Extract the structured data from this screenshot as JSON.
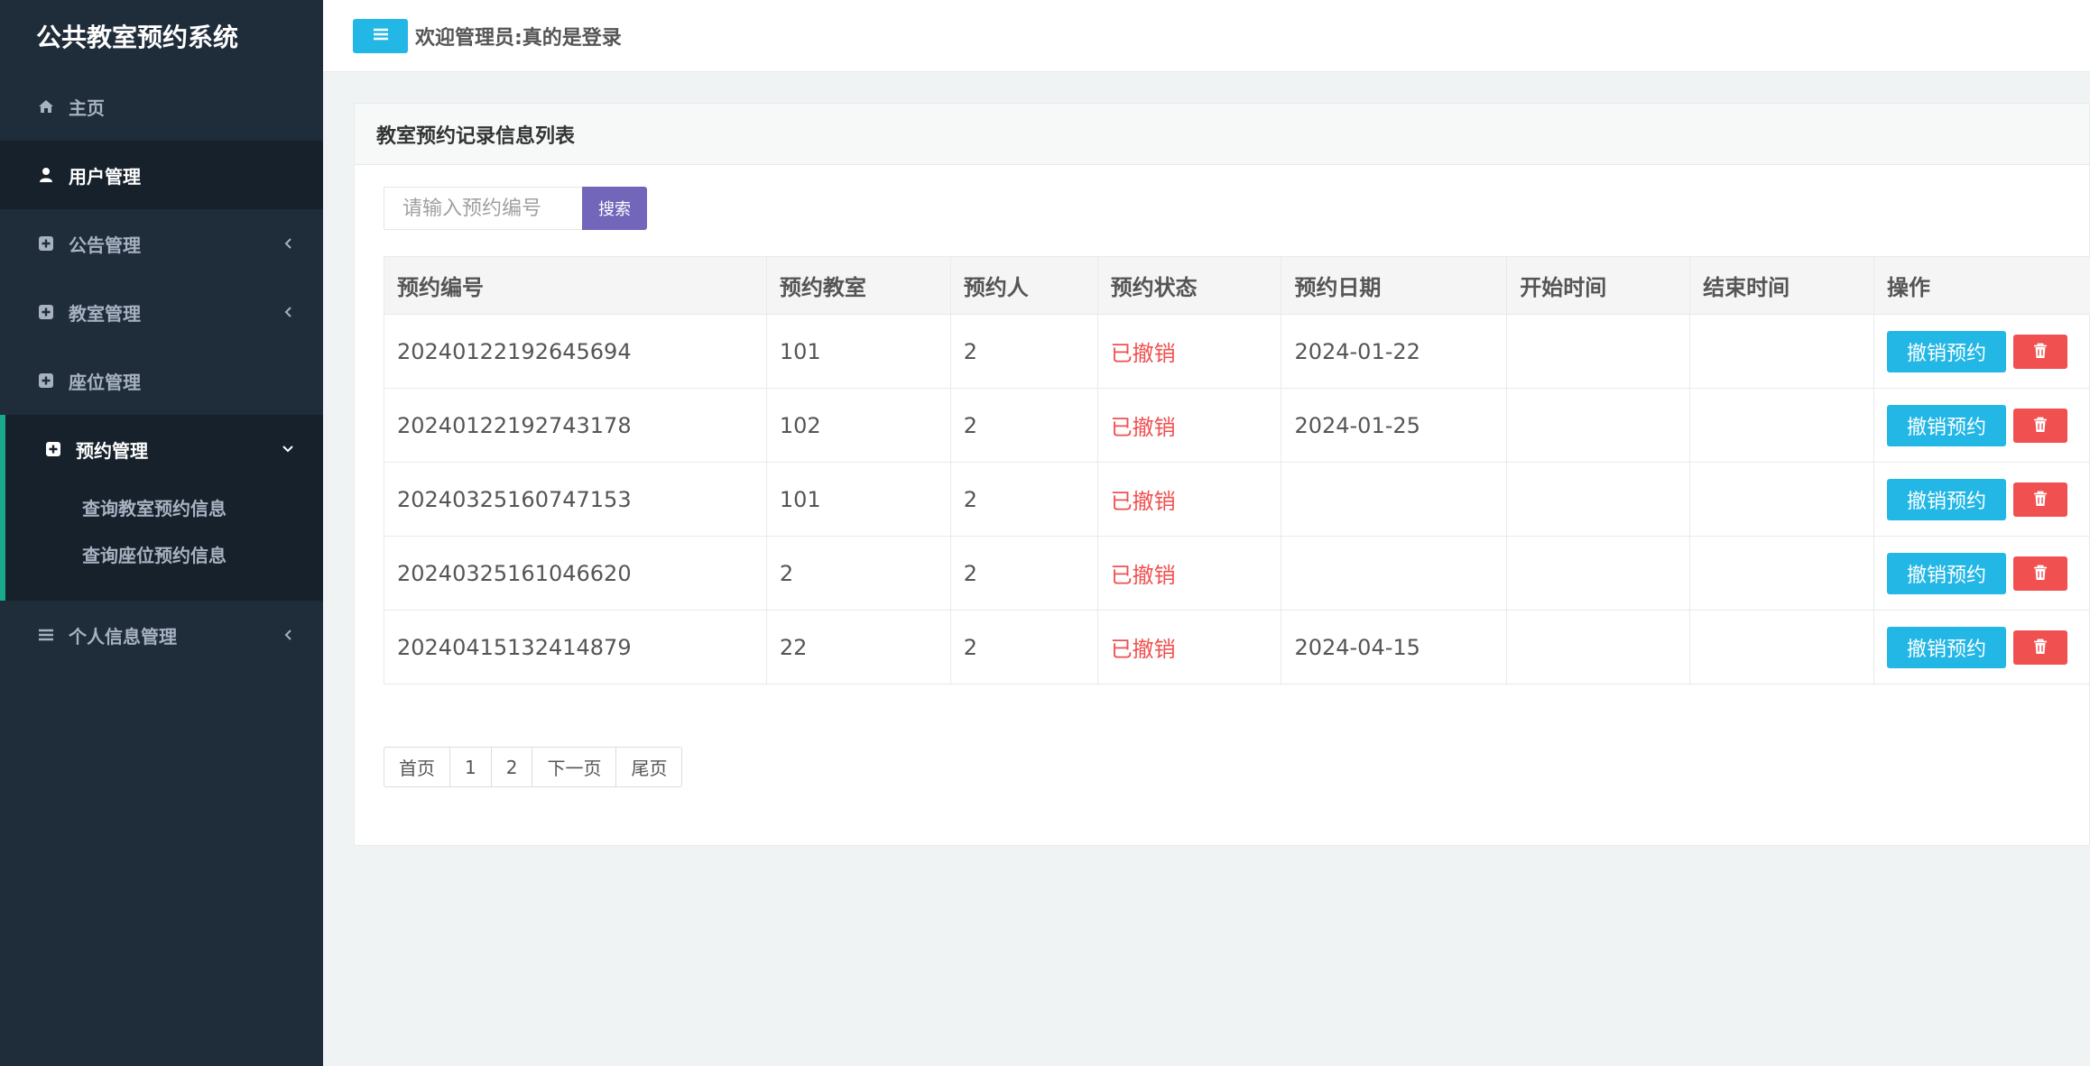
{
  "app": {
    "title": "公共教室预约系统"
  },
  "sidebar": {
    "items": [
      {
        "label": "主页",
        "icon": "home-icon"
      },
      {
        "label": "用户管理",
        "icon": "user-icon"
      },
      {
        "label": "公告管理",
        "icon": "plus-square-icon"
      },
      {
        "label": "教室管理",
        "icon": "plus-square-icon"
      },
      {
        "label": "座位管理",
        "icon": "plus-square-icon"
      },
      {
        "label": "预约管理",
        "icon": "plus-square-icon",
        "expanded": true
      },
      {
        "label": "个人信息管理",
        "icon": "bars-icon"
      }
    ],
    "submenu": [
      "查询教室预约信息",
      "查询座位预约信息"
    ]
  },
  "header": {
    "welcome": "欢迎管理员:真的是登录"
  },
  "panel": {
    "title": "教室预约记录信息列表",
    "search": {
      "placeholder": "请输入预约编号",
      "button": "搜索"
    },
    "columns": [
      "预约编号",
      "预约教室",
      "预约人",
      "预约状态",
      "预约日期",
      "开始时间",
      "结束时间",
      "操作"
    ],
    "rows": [
      {
        "id": "20240122192645694",
        "room": "101",
        "person": "2",
        "status": "已撤销",
        "date": "2024-01-22",
        "start": "",
        "end": ""
      },
      {
        "id": "20240122192743178",
        "room": "102",
        "person": "2",
        "status": "已撤销",
        "date": "2024-01-25",
        "start": "",
        "end": ""
      },
      {
        "id": "20240325160747153",
        "room": "101",
        "person": "2",
        "status": "已撤销",
        "date": "",
        "start": "",
        "end": ""
      },
      {
        "id": "20240325161046620",
        "room": "2",
        "person": "2",
        "status": "已撤销",
        "date": "",
        "start": "",
        "end": ""
      },
      {
        "id": "20240415132414879",
        "room": "22",
        "person": "2",
        "status": "已撤销",
        "date": "2024-04-15",
        "start": "",
        "end": ""
      }
    ],
    "action_label": "撤销预约",
    "pagination": [
      "首页",
      "1",
      "2",
      "下一页",
      "尾页"
    ]
  },
  "colors": {
    "sidebar_bg": "#1f2c39",
    "accent_cyan": "#23b7e5",
    "search_purple": "#7266ba",
    "danger_red": "#f05050",
    "active_border": "#19aa8d"
  }
}
